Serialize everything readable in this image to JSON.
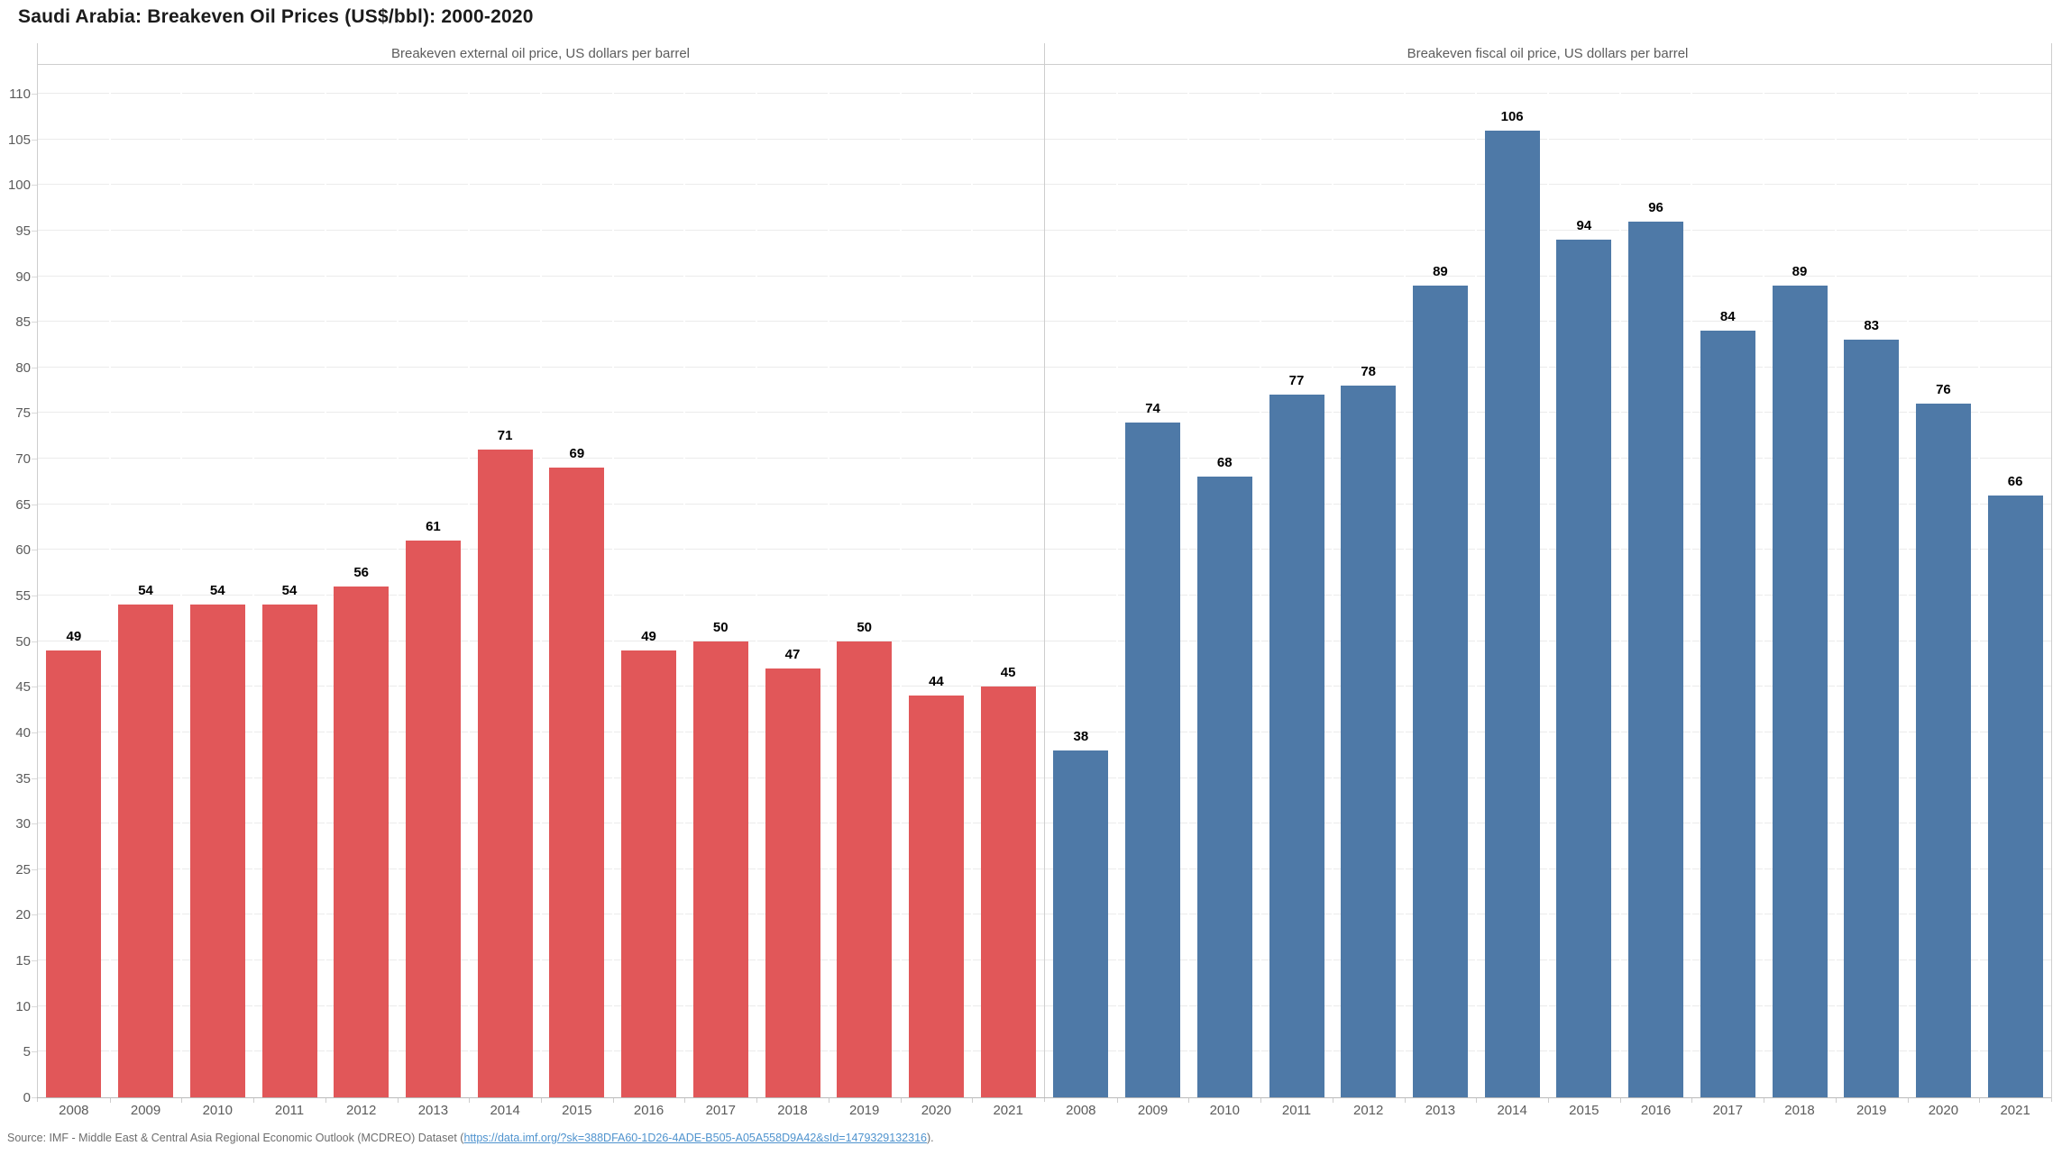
{
  "title": "Saudi Arabia: Breakeven Oil Prices (US$/bbl): 2000-2020",
  "y_axis": {
    "min": 0,
    "max": 110,
    "step": 5
  },
  "colors": {
    "external_bar": "#e15759",
    "fiscal_bar": "#4e79a7",
    "axis_text": "#5c5c5c",
    "link": "#4f93ce"
  },
  "chart_data": [
    {
      "type": "bar",
      "title": "Breakeven external oil price, US dollars per barrel",
      "categories": [
        "2008",
        "2009",
        "2010",
        "2011",
        "2012",
        "2013",
        "2014",
        "2015",
        "2016",
        "2017",
        "2018",
        "2019",
        "2020",
        "2021"
      ],
      "values": [
        49,
        54,
        54,
        54,
        56,
        61,
        71,
        69,
        49,
        50,
        47,
        50,
        44,
        45
      ],
      "bar_color": "#e15759",
      "xlabel": "",
      "ylabel": "",
      "ylim": [
        0,
        110
      ],
      "grid": true,
      "data_labels": true
    },
    {
      "type": "bar",
      "title": "Breakeven fiscal oil price, US dollars per barrel",
      "categories": [
        "2008",
        "2009",
        "2010",
        "2011",
        "2012",
        "2013",
        "2014",
        "2015",
        "2016",
        "2017",
        "2018",
        "2019",
        "2020",
        "2021"
      ],
      "values": [
        38,
        74,
        68,
        77,
        78,
        89,
        106,
        94,
        96,
        84,
        89,
        83,
        76,
        66
      ],
      "bar_color": "#4e79a7",
      "xlabel": "",
      "ylabel": "",
      "ylim": [
        0,
        110
      ],
      "grid": true,
      "data_labels": true
    }
  ],
  "source": {
    "prefix": "Source: IMF - Middle East & Central Asia Regional Economic Outlook (MCDREO) Dataset (",
    "link_text": "https://data.imf.org/?sk=388DFA60-1D26-4ADE-B505-A05A558D9A42&sId=1479329132316",
    "suffix": ")."
  }
}
